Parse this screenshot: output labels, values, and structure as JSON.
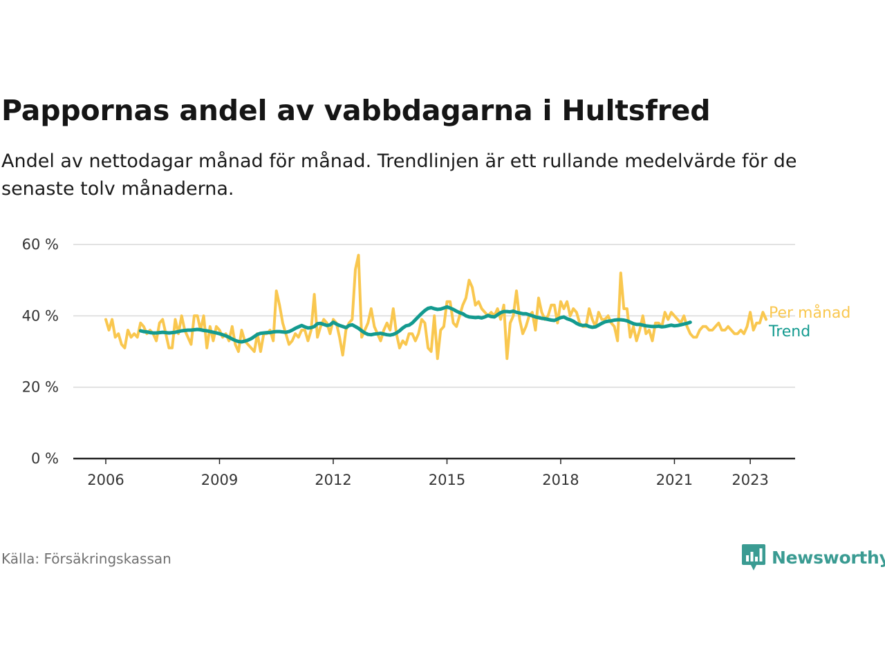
{
  "header": {
    "title": "Pappornas andel av vabbdagarna i Hultsfred",
    "subtitle": "Andel av nettodagar månad för månad. Trendlinjen är ett rullande medelvärde för de senaste tolv månaderna."
  },
  "footer": {
    "source": "Källa: Försäkringskassan",
    "brand": "Newsworthy"
  },
  "colors": {
    "monthly": "#f9c74f",
    "trend": "#139a8f",
    "grid": "#d9d9d9",
    "axis": "#222222",
    "brand": "#3a9b92"
  },
  "icons": [
    "newsworthy-logo-icon"
  ],
  "chart_data": {
    "type": "line",
    "title": "Pappornas andel av vabbdagarna i Hultsfred",
    "subtitle": "Andel av nettodagar månad för månad. Trendlinjen är ett rullande medelvärde för de senaste tolv månaderna.",
    "xlabel": "",
    "ylabel": "",
    "xlim": [
      2005.6,
      2024.8
    ],
    "ylim": [
      0,
      60
    ],
    "yticks": [
      0,
      20,
      40,
      60
    ],
    "ytick_labels": [
      "0 %",
      "20 %",
      "40 %",
      "60 %"
    ],
    "xticks": [
      2006,
      2009,
      2012,
      2015,
      2018,
      2021,
      2023
    ],
    "xtick_labels": [
      "2006",
      "2009",
      "2012",
      "2015",
      "2018",
      "2021",
      "2023"
    ],
    "grid": true,
    "legend": "direct labels at line ends, right",
    "series": [
      {
        "name": "Per månad",
        "color": "#f9c74f",
        "x_start": "2006-01",
        "frequency": "monthly",
        "values": [
          39,
          36,
          39,
          34,
          35,
          32,
          31,
          36,
          34,
          35,
          34,
          38,
          37,
          35,
          36,
          35,
          33,
          38,
          39,
          35,
          31,
          31,
          39,
          35,
          40,
          36,
          34,
          32,
          40,
          40,
          36,
          40,
          31,
          37,
          33,
          37,
          36,
          34,
          35,
          33,
          37,
          32,
          30,
          36,
          33,
          32,
          31,
          30,
          35,
          30,
          35,
          35,
          36,
          33,
          47,
          43,
          38,
          35,
          32,
          33,
          35,
          34,
          36,
          36,
          33,
          36,
          46,
          34,
          37,
          39,
          38,
          35,
          39,
          38,
          34,
          29,
          36,
          38,
          39,
          53,
          57,
          34,
          36,
          38,
          42,
          37,
          35,
          33,
          36,
          38,
          36,
          42,
          35,
          31,
          33,
          32,
          35,
          35,
          33,
          35,
          39,
          38,
          31,
          30,
          40,
          28,
          36,
          37,
          44,
          44,
          38,
          37,
          40,
          43,
          45,
          50,
          48,
          43,
          44,
          42,
          41,
          40,
          41,
          40,
          42,
          39,
          43,
          28,
          38,
          40,
          47,
          39,
          35,
          37,
          40,
          41,
          36,
          45,
          41,
          39,
          40,
          43,
          43,
          38,
          44,
          42,
          44,
          40,
          42,
          41,
          38,
          37,
          37,
          42,
          39,
          37,
          41,
          39,
          39,
          40,
          38,
          37,
          33,
          52,
          42,
          42,
          34,
          37,
          33,
          36,
          40,
          35,
          36,
          33,
          38,
          38,
          37,
          41,
          39,
          41,
          40,
          39,
          38,
          40,
          37,
          35,
          34,
          34,
          36,
          37,
          37,
          36,
          36,
          37,
          38,
          36,
          36,
          37,
          36,
          35,
          35,
          36,
          35,
          37,
          41,
          36,
          38,
          38,
          41,
          39
        ]
      },
      {
        "name": "Trend",
        "color": "#139a8f",
        "x_start": "2006-12",
        "frequency": "monthly",
        "values": [
          35.8,
          35.6,
          35.5,
          35.3,
          35.2,
          35.2,
          35.3,
          35.4,
          35.3,
          35.2,
          35.3,
          35.4,
          35.6,
          35.8,
          35.9,
          36.0,
          36.0,
          36.1,
          36.2,
          36.1,
          35.9,
          35.8,
          35.6,
          35.4,
          35.2,
          35.0,
          34.7,
          34.4,
          34.0,
          33.5,
          33.1,
          32.8,
          32.7,
          32.9,
          33.2,
          33.6,
          34.2,
          34.8,
          35.1,
          35.2,
          35.3,
          35.3,
          35.5,
          35.6,
          35.6,
          35.5,
          35.4,
          35.6,
          36.0,
          36.5,
          36.9,
          37.3,
          36.9,
          36.6,
          36.7,
          37.0,
          37.8,
          37.9,
          37.6,
          37.3,
          37.5,
          38.2,
          37.7,
          37.3,
          37.0,
          36.7,
          37.3,
          37.5,
          37.0,
          36.5,
          35.8,
          35.2,
          34.8,
          34.7,
          34.9,
          35.0,
          35.1,
          34.9,
          34.7,
          34.6,
          34.8,
          35.2,
          35.8,
          36.6,
          37.2,
          37.4,
          38.0,
          38.9,
          39.8,
          40.7,
          41.5,
          42.1,
          42.3,
          42.0,
          41.8,
          41.9,
          42.2,
          42.5,
          42.2,
          41.8,
          41.3,
          40.9,
          40.6,
          40.0,
          39.7,
          39.6,
          39.5,
          39.6,
          39.4,
          39.7,
          40.1,
          39.8,
          39.7,
          40.3,
          40.9,
          41.2,
          41.2,
          41.1,
          41.3,
          41.0,
          40.8,
          40.6,
          40.6,
          40.3,
          40.0,
          39.7,
          39.5,
          39.3,
          39.2,
          39.0,
          38.8,
          38.7,
          39.1,
          39.5,
          39.7,
          39.2,
          38.9,
          38.5,
          37.9,
          37.5,
          37.3,
          37.4,
          37.0,
          36.8,
          36.9,
          37.4,
          37.9,
          38.3,
          38.5,
          38.6,
          38.8,
          38.9,
          38.9,
          38.8,
          38.6,
          38.2,
          37.8,
          37.6,
          37.6,
          37.4,
          37.2,
          37.1,
          37.0,
          37.0,
          37.1,
          36.9,
          37.0,
          37.2,
          37.4,
          37.2,
          37.3,
          37.5,
          37.7,
          37.9,
          38.2
        ]
      }
    ]
  }
}
